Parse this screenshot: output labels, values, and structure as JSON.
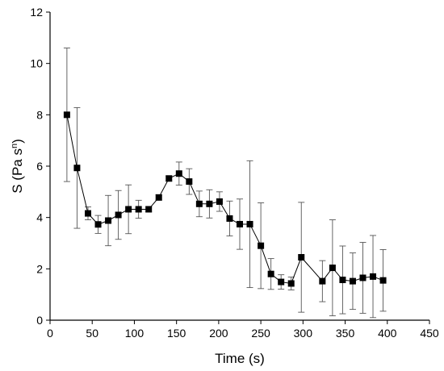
{
  "chart_data": {
    "type": "scatter",
    "title": "",
    "xlabel": "Time (s)",
    "ylabel": {
      "prefix": "S (Pa s",
      "superscript": "n",
      "suffix": ")"
    },
    "xlim": [
      0,
      450
    ],
    "ylim": [
      0,
      12
    ],
    "xticks": [
      0,
      50,
      100,
      150,
      200,
      250,
      300,
      350,
      400,
      450
    ],
    "yticks": [
      0,
      2,
      4,
      6,
      8,
      10,
      12
    ],
    "marker": "square",
    "line": true,
    "error_bars": true,
    "x": [
      20,
      32,
      45,
      57,
      69,
      81,
      93,
      105,
      117,
      129,
      141,
      153,
      165,
      177,
      189,
      201,
      213,
      225,
      237,
      250,
      262,
      274,
      286,
      298,
      323,
      335,
      347,
      359,
      371,
      383,
      395
    ],
    "y": [
      8.0,
      5.93,
      4.16,
      3.73,
      3.88,
      4.1,
      4.32,
      4.32,
      4.32,
      4.78,
      5.52,
      5.71,
      5.4,
      4.53,
      4.53,
      4.62,
      3.96,
      3.74,
      3.74,
      2.9,
      1.8,
      1.49,
      1.43,
      2.45,
      1.52,
      2.04,
      1.57,
      1.52,
      1.65,
      1.7,
      1.55
    ],
    "err": [
      2.6,
      2.35,
      0.25,
      0.35,
      0.98,
      0.95,
      0.95,
      0.35,
      0.1,
      0.1,
      0.1,
      0.45,
      0.5,
      0.5,
      0.55,
      0.38,
      0.68,
      0.98,
      2.47,
      1.67,
      0.6,
      0.28,
      0.25,
      2.14,
      0.8,
      1.87,
      1.32,
      1.1,
      1.38,
      1.6,
      1.2
    ]
  }
}
